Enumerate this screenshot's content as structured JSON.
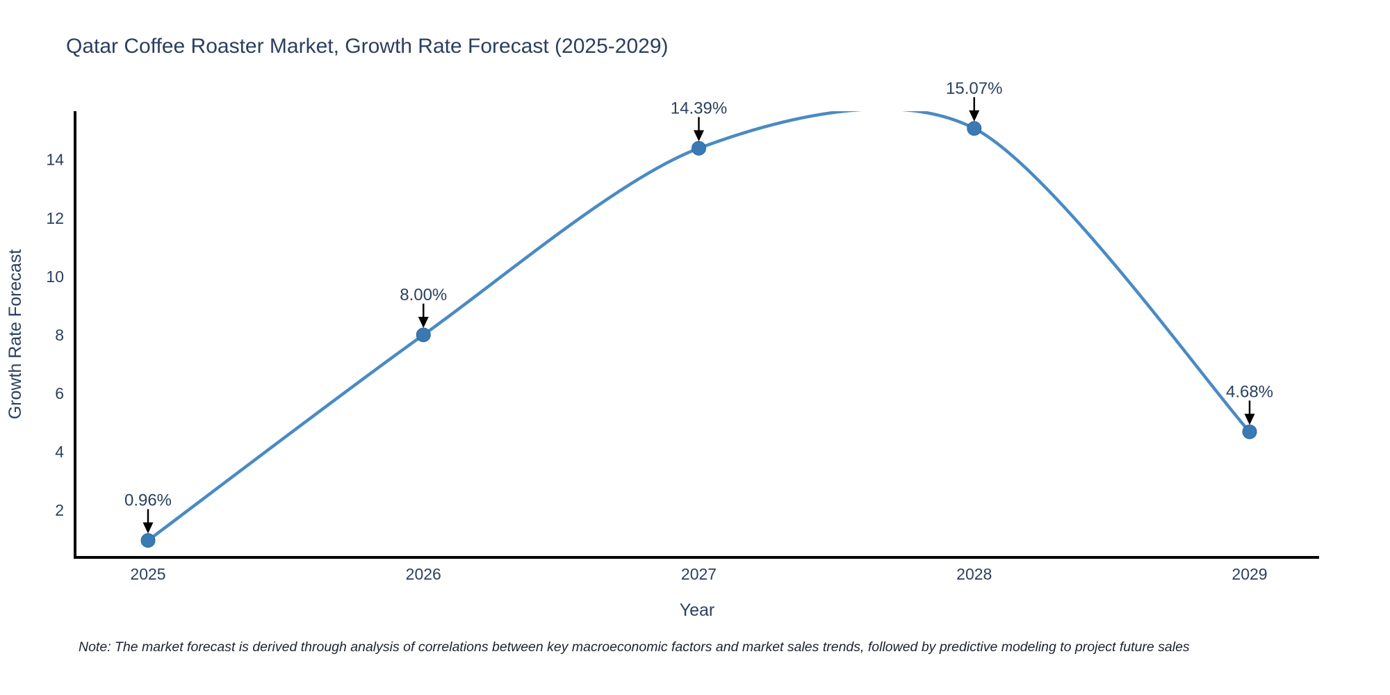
{
  "chart_data": {
    "type": "line",
    "line_shape": "spline",
    "title": "Qatar Coffee Roaster Market, Growth Rate Forecast (2025-2029)",
    "xlabel": "Year",
    "ylabel": "Growth Rate Forecast",
    "categories": [
      "2025",
      "2026",
      "2027",
      "2028",
      "2029"
    ],
    "series": [
      {
        "name": "Growth Rate Forecast",
        "values": [
          0.96,
          8.0,
          14.39,
          15.07,
          4.68
        ]
      }
    ],
    "point_labels": [
      "0.96%",
      "8.00%",
      "14.39%",
      "15.07%",
      "4.68%"
    ],
    "yticks": [
      2,
      4,
      6,
      8,
      10,
      12,
      14
    ],
    "ylim": [
      0.38,
      15.66
    ],
    "grid": false,
    "legend_position": "none",
    "colors": {
      "line": "#4a8ac4",
      "marker": "#3a7ab4",
      "marker_edge": "#2f6698",
      "axis": "#000000",
      "tick_text": "#2a3f5f",
      "title_text": "#2a3f5f",
      "annotation_text": "#2a3f5f",
      "arrow": "#000000"
    }
  },
  "note": "Note: The market forecast is derived through analysis of correlations between key macroeconomic factors and market sales trends, followed by predictive modeling to project future sales"
}
